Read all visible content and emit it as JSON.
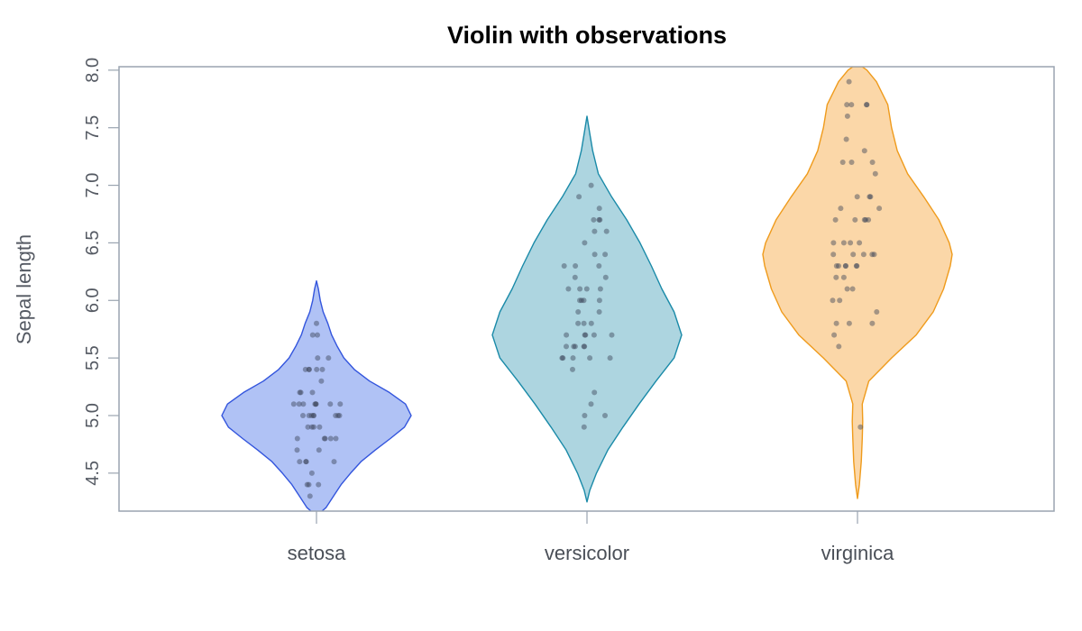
{
  "chart_data": {
    "type": "violin",
    "title": "Violin with observations",
    "ylabel": "Sepal length",
    "xlabel": "",
    "ylim": [
      4.17,
      8.03
    ],
    "yticks": [
      4.5,
      5.0,
      5.5,
      6.0,
      6.5,
      7.0,
      7.5,
      8.0
    ],
    "ytick_labels": [
      "4.5",
      "5.0",
      "5.5",
      "6.0",
      "6.5",
      "7.0",
      "7.5",
      "8.0"
    ],
    "grid": false,
    "categories": [
      "setosa",
      "versicolor",
      "virginica"
    ],
    "colors": {
      "setosa": {
        "fill": "#b0c2f5",
        "stroke": "#3355dd"
      },
      "versicolor": {
        "fill": "#add5e0",
        "stroke": "#1a8aa8"
      },
      "virginica": {
        "fill": "#fbd7a8",
        "stroke": "#ef9b1c"
      }
    },
    "series": [
      {
        "name": "setosa",
        "density": [
          [
            4.15,
            0.03
          ],
          [
            4.2,
            0.1
          ],
          [
            4.3,
            0.18
          ],
          [
            4.4,
            0.26
          ],
          [
            4.5,
            0.36
          ],
          [
            4.6,
            0.47
          ],
          [
            4.7,
            0.62
          ],
          [
            4.8,
            0.78
          ],
          [
            4.9,
            0.93
          ],
          [
            5.0,
            1.0
          ],
          [
            5.1,
            0.94
          ],
          [
            5.2,
            0.77
          ],
          [
            5.3,
            0.56
          ],
          [
            5.4,
            0.4
          ],
          [
            5.5,
            0.29
          ],
          [
            5.6,
            0.22
          ],
          [
            5.7,
            0.16
          ],
          [
            5.8,
            0.12
          ],
          [
            5.9,
            0.07
          ],
          [
            6.0,
            0.04
          ],
          [
            6.1,
            0.02
          ],
          [
            6.17,
            0.0
          ]
        ],
        "values": [
          5.1,
          4.9,
          4.7,
          4.6,
          5.0,
          5.4,
          4.6,
          5.0,
          4.4,
          4.9,
          5.4,
          4.8,
          4.8,
          4.3,
          5.8,
          5.7,
          5.4,
          5.1,
          5.7,
          5.1,
          5.4,
          5.1,
          4.6,
          5.1,
          4.8,
          5.0,
          5.0,
          5.2,
          5.2,
          4.7,
          4.8,
          5.4,
          5.2,
          5.5,
          4.9,
          5.0,
          5.5,
          4.9,
          4.4,
          5.1,
          5.0,
          4.5,
          4.4,
          5.0,
          5.1,
          4.8,
          5.1,
          4.6,
          5.3,
          5.0
        ]
      },
      {
        "name": "versicolor",
        "density": [
          [
            4.25,
            0.0
          ],
          [
            4.35,
            0.03
          ],
          [
            4.5,
            0.1
          ],
          [
            4.7,
            0.22
          ],
          [
            4.9,
            0.38
          ],
          [
            5.1,
            0.55
          ],
          [
            5.3,
            0.73
          ],
          [
            5.5,
            0.92
          ],
          [
            5.7,
            1.0
          ],
          [
            5.9,
            0.92
          ],
          [
            6.1,
            0.79
          ],
          [
            6.3,
            0.68
          ],
          [
            6.5,
            0.56
          ],
          [
            6.7,
            0.42
          ],
          [
            6.9,
            0.26
          ],
          [
            7.1,
            0.12
          ],
          [
            7.3,
            0.06
          ],
          [
            7.45,
            0.03
          ],
          [
            7.6,
            0.0
          ]
        ],
        "values": [
          7.0,
          6.4,
          6.9,
          5.5,
          6.5,
          5.7,
          6.3,
          4.9,
          6.6,
          5.2,
          5.0,
          5.9,
          6.0,
          6.1,
          5.6,
          6.7,
          5.6,
          5.8,
          6.2,
          5.6,
          5.9,
          6.1,
          6.3,
          6.1,
          6.4,
          6.6,
          6.8,
          6.7,
          6.0,
          5.7,
          5.5,
          5.5,
          5.8,
          6.0,
          5.4,
          6.0,
          6.7,
          6.3,
          5.6,
          5.5,
          5.5,
          6.1,
          5.8,
          5.0,
          5.6,
          5.7,
          5.7,
          6.2,
          5.1,
          5.7
        ]
      },
      {
        "name": "virginica",
        "density": [
          [
            4.28,
            0.0
          ],
          [
            4.4,
            0.02
          ],
          [
            4.6,
            0.04
          ],
          [
            4.8,
            0.05
          ],
          [
            4.95,
            0.055
          ],
          [
            5.1,
            0.05
          ],
          [
            5.3,
            0.12
          ],
          [
            5.5,
            0.36
          ],
          [
            5.7,
            0.62
          ],
          [
            5.9,
            0.8
          ],
          [
            6.1,
            0.91
          ],
          [
            6.3,
            0.98
          ],
          [
            6.4,
            1.0
          ],
          [
            6.5,
            0.97
          ],
          [
            6.7,
            0.86
          ],
          [
            6.9,
            0.7
          ],
          [
            7.1,
            0.53
          ],
          [
            7.3,
            0.42
          ],
          [
            7.5,
            0.36
          ],
          [
            7.7,
            0.32
          ],
          [
            7.9,
            0.2
          ],
          [
            8.0,
            0.1
          ],
          [
            8.03,
            0.05
          ]
        ],
        "values": [
          6.3,
          5.8,
          7.1,
          6.3,
          6.5,
          7.6,
          4.9,
          7.3,
          6.7,
          7.2,
          6.5,
          6.4,
          6.8,
          5.7,
          5.8,
          6.4,
          6.5,
          7.7,
          7.7,
          6.0,
          6.9,
          5.6,
          7.7,
          6.3,
          6.7,
          7.2,
          6.2,
          6.1,
          6.4,
          7.2,
          7.4,
          7.9,
          6.4,
          6.3,
          6.1,
          7.7,
          6.3,
          6.4,
          6.0,
          6.9,
          6.7,
          6.9,
          5.8,
          6.8,
          6.7,
          6.7,
          6.3,
          6.5,
          6.2,
          5.9
        ]
      }
    ]
  }
}
